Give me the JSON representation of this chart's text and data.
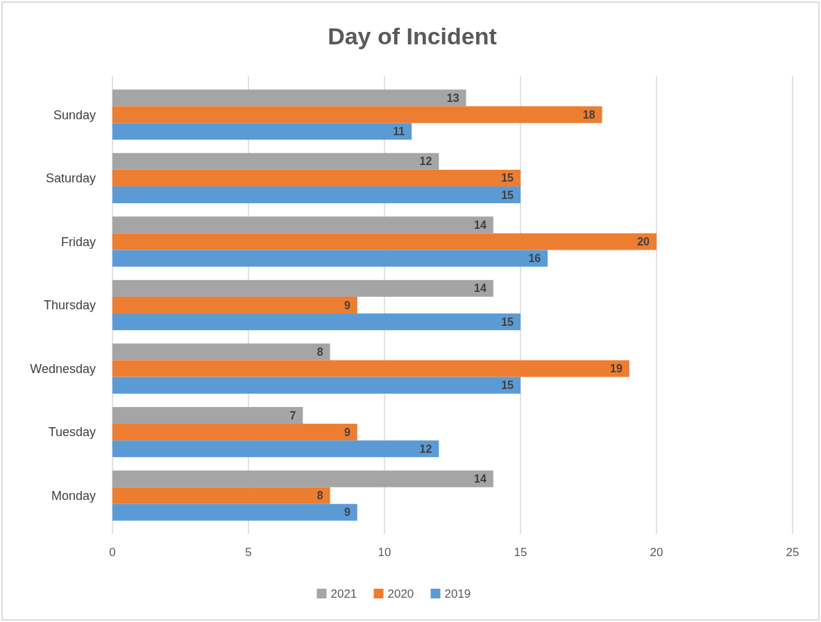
{
  "chart_data": {
    "type": "bar",
    "orientation": "horizontal",
    "title": "Day of Incident",
    "categories": [
      "Sunday",
      "Saturday",
      "Friday",
      "Thursday",
      "Wednesday",
      "Tuesday",
      "Monday"
    ],
    "series": [
      {
        "name": "2021",
        "color": "#a5a5a5",
        "values": [
          13,
          12,
          14,
          14,
          8,
          7,
          14
        ]
      },
      {
        "name": "2020",
        "color": "#ed7d31",
        "values": [
          18,
          15,
          20,
          9,
          19,
          9,
          8
        ]
      },
      {
        "name": "2019",
        "color": "#5b9bd5",
        "values": [
          11,
          15,
          16,
          15,
          15,
          12,
          9
        ]
      }
    ],
    "xlim": [
      0,
      25
    ],
    "xticks": [
      0,
      5,
      10,
      15,
      20,
      25
    ],
    "grid": "x",
    "legend": "bottom",
    "data_labels": true
  }
}
